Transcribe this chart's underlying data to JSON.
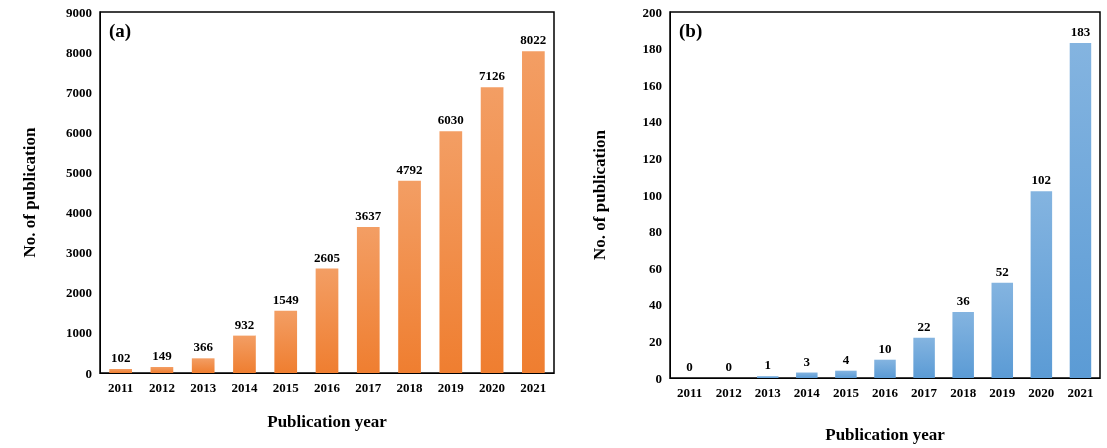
{
  "chart_data": [
    {
      "type": "bar",
      "title": "(a)",
      "xlabel": "Publication year",
      "ylabel": "No. of publication",
      "categories": [
        "2011",
        "2012",
        "2013",
        "2014",
        "2015",
        "2016",
        "2017",
        "2018",
        "2019",
        "2020",
        "2021"
      ],
      "values": [
        102,
        149,
        366,
        932,
        1549,
        2605,
        3637,
        4792,
        6030,
        7126,
        8022
      ],
      "color": "#ef7e30",
      "ylim": [
        0,
        9000
      ],
      "yticks": [
        0,
        1000,
        2000,
        3000,
        4000,
        5000,
        6000,
        7000,
        8000,
        9000
      ],
      "grid": false,
      "data_labels": true
    },
    {
      "type": "bar",
      "title": "(b)",
      "xlabel": "Publication year",
      "ylabel": "No. of publication",
      "categories": [
        "2011",
        "2012",
        "2013",
        "2014",
        "2015",
        "2016",
        "2017",
        "2018",
        "2019",
        "2020",
        "2021"
      ],
      "values": [
        0,
        0,
        1,
        3,
        4,
        10,
        22,
        36,
        52,
        102,
        183
      ],
      "color": "#5b9bd5",
      "ylim": [
        0,
        200
      ],
      "yticks": [
        0,
        20,
        40,
        60,
        80,
        100,
        120,
        140,
        160,
        180,
        200
      ],
      "grid": false,
      "data_labels": true
    }
  ]
}
